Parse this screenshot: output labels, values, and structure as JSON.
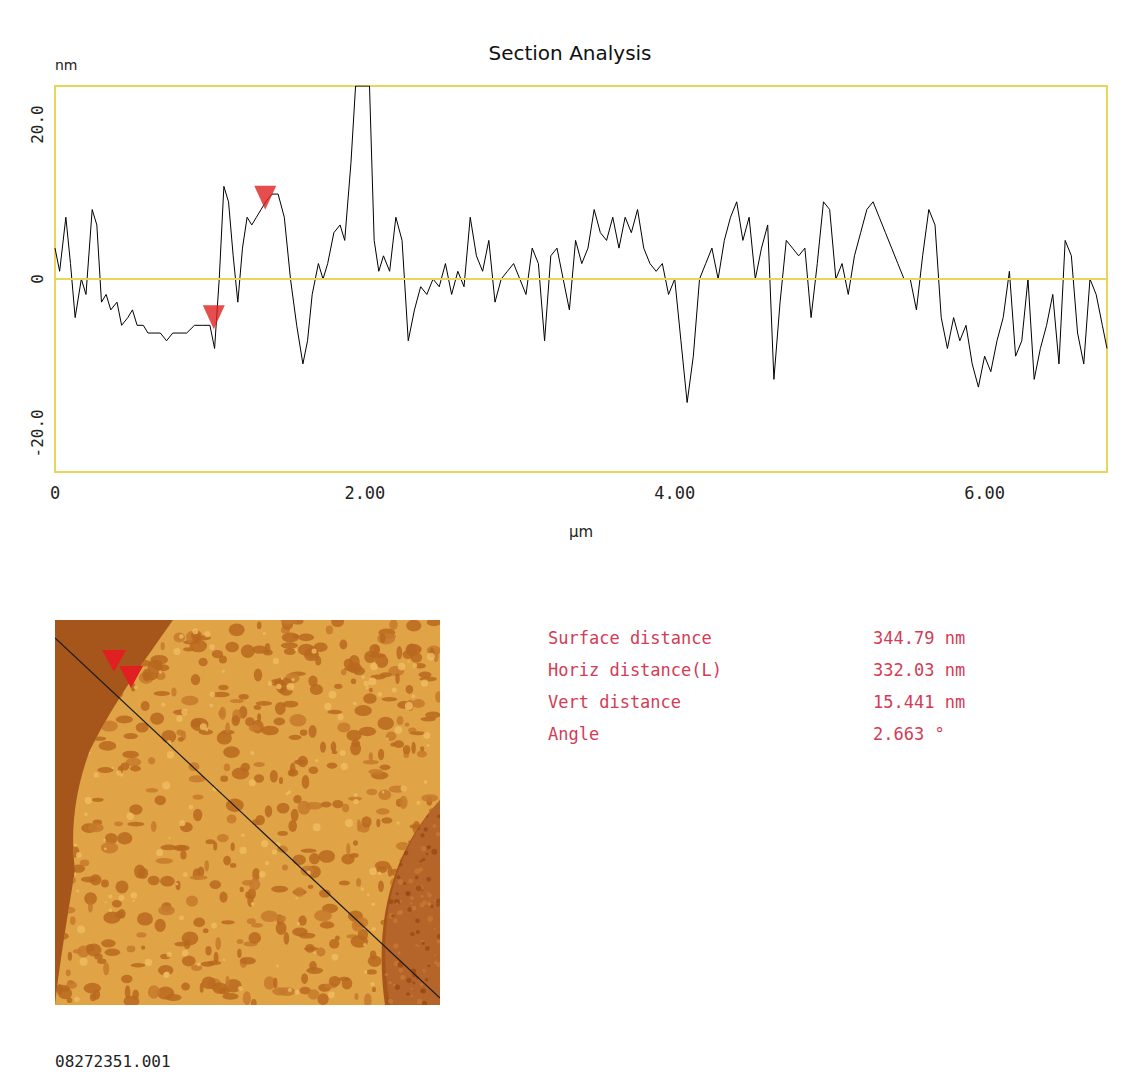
{
  "chart_data": {
    "type": "line",
    "title": "Section Analysis",
    "x_label": "µm",
    "y_label": "nm",
    "x": [
      0,
      0.03,
      0.07,
      0.1,
      0.13,
      0.17,
      0.2,
      0.24,
      0.27,
      0.3,
      0.33,
      0.36,
      0.4,
      0.43,
      0.47,
      0.5,
      0.53,
      0.57,
      0.6,
      0.64,
      0.68,
      0.72,
      0.76,
      0.8,
      0.85,
      0.9,
      0.95,
      1,
      1.03,
      1.06,
      1.09,
      1.12,
      1.15,
      1.18,
      1.21,
      1.24,
      1.27,
      1.3,
      1.33,
      1.36,
      1.4,
      1.44,
      1.48,
      1.52,
      1.56,
      1.6,
      1.63,
      1.66,
      1.7,
      1.73,
      1.76,
      1.8,
      1.84,
      1.87,
      1.91,
      1.94,
      1.97,
      2,
      2.03,
      2.06,
      2.09,
      2.12,
      2.16,
      2.2,
      2.24,
      2.28,
      2.32,
      2.36,
      2.4,
      2.44,
      2.48,
      2.52,
      2.56,
      2.6,
      2.64,
      2.68,
      2.72,
      2.76,
      2.8,
      2.84,
      2.88,
      2.92,
      2.96,
      3,
      3.04,
      3.08,
      3.12,
      3.16,
      3.2,
      3.24,
      3.28,
      3.32,
      3.36,
      3.4,
      3.44,
      3.48,
      3.52,
      3.56,
      3.6,
      3.64,
      3.68,
      3.72,
      3.76,
      3.8,
      3.84,
      3.88,
      3.92,
      3.96,
      4,
      4.04,
      4.08,
      4.12,
      4.16,
      4.2,
      4.24,
      4.28,
      4.32,
      4.36,
      4.4,
      4.44,
      4.48,
      4.52,
      4.56,
      4.6,
      4.64,
      4.68,
      4.72,
      4.76,
      4.8,
      4.84,
      4.88,
      4.92,
      4.96,
      5,
      5.04,
      5.08,
      5.12,
      5.16,
      5.2,
      5.24,
      5.28,
      5.32,
      5.36,
      5.4,
      5.44,
      5.48,
      5.52,
      5.56,
      5.6,
      5.64,
      5.68,
      5.72,
      5.76,
      5.8,
      5.84,
      5.88,
      5.92,
      5.96,
      6,
      6.04,
      6.08,
      6.12,
      6.16,
      6.2,
      6.24,
      6.28,
      6.32,
      6.36,
      6.4,
      6.44,
      6.48,
      6.52,
      6.56,
      6.6,
      6.64,
      6.68,
      6.72,
      6.76,
      6.79
    ],
    "values": [
      4,
      1,
      8,
      2,
      -5,
      0,
      -2,
      9,
      7,
      -3,
      -2,
      -4,
      -3,
      -6,
      -5,
      -4,
      -6,
      -6,
      -7,
      -7,
      -7,
      -8,
      -7,
      -7,
      -7,
      -6,
      -6,
      -6,
      -9,
      0,
      12,
      10,
      3,
      -3,
      4,
      8,
      7,
      8,
      9,
      10,
      11,
      11,
      8,
      0,
      -6,
      -11,
      -8,
      -2,
      2,
      0,
      2,
      6,
      7,
      5,
      15,
      25,
      25,
      25,
      25,
      5,
      1,
      3,
      1,
      8,
      5,
      -8,
      -4,
      -1,
      -2,
      0,
      -1,
      2,
      -2,
      1,
      -1,
      8,
      3,
      1,
      5,
      -3,
      0,
      1,
      2,
      0,
      -2,
      4,
      2,
      -8,
      3,
      4,
      0,
      -4,
      5,
      2,
      4,
      9,
      6,
      5,
      8,
      4,
      8,
      6,
      9,
      4,
      2,
      1,
      2,
      -2,
      0,
      -8,
      -16,
      -10,
      0,
      2,
      4,
      0,
      5,
      8,
      10,
      5,
      8,
      0,
      4,
      7,
      -13,
      -3,
      5,
      4,
      3,
      4,
      -5,
      2,
      10,
      9,
      0,
      2,
      -2,
      3,
      6,
      9,
      10,
      8,
      6,
      4,
      2,
      0,
      0,
      -4,
      3,
      9,
      7,
      -5,
      -9,
      -5,
      -8,
      -6,
      -11,
      -14,
      -10,
      -12,
      -8,
      -5,
      1,
      -10,
      -8,
      0,
      -13,
      -9,
      -6,
      -2,
      -11,
      5,
      3,
      -7,
      -11,
      0,
      -2,
      -6,
      -9
    ],
    "color": "#000000",
    "xlim": [
      0,
      6.79
    ],
    "xticks": [
      0,
      {
        "value": 2,
        "label": "2.00"
      },
      {
        "value": 4,
        "label": "4.00"
      },
      {
        "value": 6,
        "label": "6.00"
      }
    ],
    "ylim": [
      -25,
      25
    ],
    "yticks": [
      {
        "value": -20,
        "label": "-20.0"
      },
      0,
      {
        "value": 20,
        "label": "20.0"
      }
    ],
    "cursors": {
      "x": [
        1.025,
        1.357
      ],
      "y": [
        -6,
        9.5
      ],
      "color": "#e02020",
      "marker": "triangle"
    }
  },
  "measurements": [
    {
      "label": "Surface distance",
      "value": "344.79 nm"
    },
    {
      "label": "Horiz distance(L)",
      "value": "332.03 nm"
    },
    {
      "label": "Vert distance",
      "value": "15.441 nm"
    },
    {
      "label": "Angle",
      "value": "2.663 °"
    }
  ],
  "file_name": "08272351.001"
}
